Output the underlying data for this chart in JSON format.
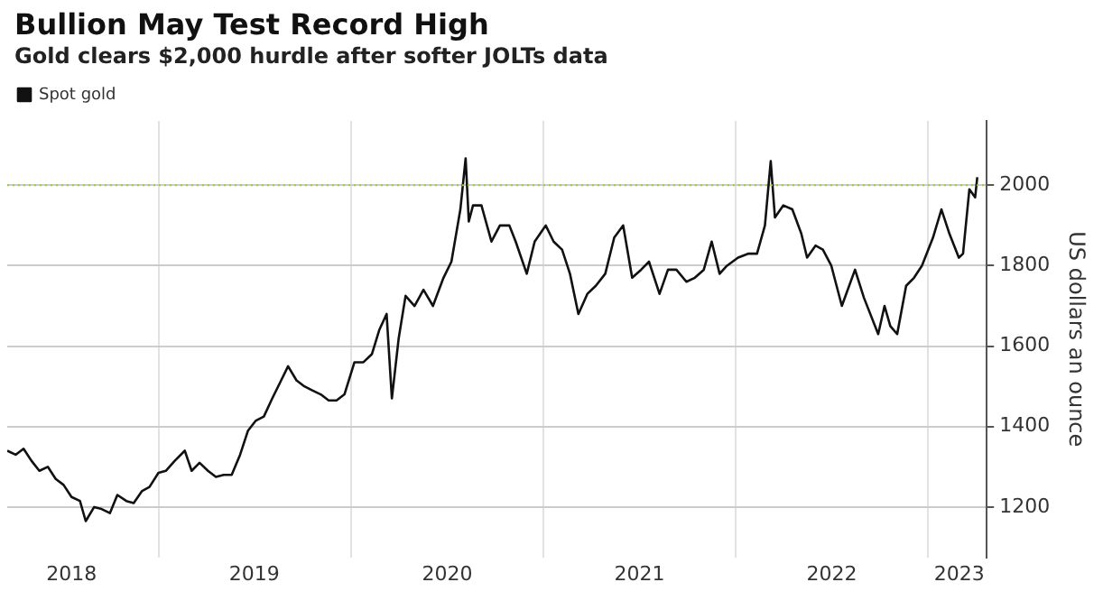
{
  "chart_data": {
    "type": "line",
    "title": "Bullion May Test Record High",
    "subtitle": "Gold clears $2,000 hurdle after softer JOLTs data",
    "ylabel": "US dollars an ounce",
    "x": [
      "2018-03-20",
      "2018-04-05",
      "2018-04-20",
      "2018-05-05",
      "2018-05-20",
      "2018-06-05",
      "2018-06-20",
      "2018-07-05",
      "2018-07-20",
      "2018-08-05",
      "2018-08-16",
      "2018-09-01",
      "2018-09-15",
      "2018-10-01",
      "2018-10-15",
      "2018-11-01",
      "2018-11-15",
      "2018-12-01",
      "2018-12-15",
      "2019-01-01",
      "2019-01-15",
      "2019-02-01",
      "2019-02-20",
      "2019-03-05",
      "2019-03-20",
      "2019-04-05",
      "2019-04-20",
      "2019-05-05",
      "2019-05-20",
      "2019-06-05",
      "2019-06-20",
      "2019-07-05",
      "2019-07-20",
      "2019-08-05",
      "2019-08-20",
      "2019-09-04",
      "2019-09-20",
      "2019-10-05",
      "2019-10-20",
      "2019-11-05",
      "2019-11-20",
      "2019-12-05",
      "2019-12-20",
      "2020-01-08",
      "2020-01-25",
      "2020-02-10",
      "2020-02-24",
      "2020-03-09",
      "2020-03-19",
      "2020-04-01",
      "2020-04-14",
      "2020-05-01",
      "2020-05-18",
      "2020-06-05",
      "2020-06-25",
      "2020-07-10",
      "2020-07-27",
      "2020-08-06",
      "2020-08-12",
      "2020-08-20",
      "2020-09-05",
      "2020-09-24",
      "2020-10-10",
      "2020-10-28",
      "2020-11-09",
      "2020-11-30",
      "2020-12-15",
      "2021-01-05",
      "2021-01-20",
      "2021-02-05",
      "2021-02-20",
      "2021-03-08",
      "2021-03-25",
      "2021-04-10",
      "2021-04-28",
      "2021-05-15",
      "2021-06-01",
      "2021-06-18",
      "2021-07-05",
      "2021-07-20",
      "2021-08-09",
      "2021-08-25",
      "2021-09-10",
      "2021-09-29",
      "2021-10-15",
      "2021-11-01",
      "2021-11-16",
      "2021-12-01",
      "2021-12-15",
      "2022-01-05",
      "2022-01-25",
      "2022-02-10",
      "2022-02-25",
      "2022-03-08",
      "2022-03-16",
      "2022-04-01",
      "2022-04-18",
      "2022-05-05",
      "2022-05-16",
      "2022-06-01",
      "2022-06-15",
      "2022-07-01",
      "2022-07-21",
      "2022-08-15",
      "2022-09-01",
      "2022-09-28",
      "2022-10-10",
      "2022-10-21",
      "2022-11-03",
      "2022-11-20",
      "2022-12-05",
      "2022-12-20",
      "2023-01-10",
      "2023-01-26",
      "2023-02-10",
      "2023-02-28",
      "2023-03-08",
      "2023-03-20",
      "2023-03-31",
      "2023-04-04"
    ],
    "series": [
      {
        "name": "Spot gold",
        "color": "#111111",
        "values": [
          1340,
          1330,
          1345,
          1315,
          1290,
          1300,
          1270,
          1255,
          1225,
          1215,
          1165,
          1200,
          1195,
          1185,
          1230,
          1215,
          1210,
          1240,
          1250,
          1285,
          1290,
          1315,
          1340,
          1290,
          1310,
          1290,
          1275,
          1280,
          1280,
          1330,
          1390,
          1415,
          1425,
          1470,
          1510,
          1550,
          1515,
          1500,
          1490,
          1480,
          1465,
          1465,
          1480,
          1560,
          1560,
          1580,
          1640,
          1680,
          1470,
          1620,
          1725,
          1700,
          1740,
          1700,
          1770,
          1810,
          1940,
          2067,
          1910,
          1950,
          1950,
          1860,
          1900,
          1900,
          1860,
          1780,
          1860,
          1900,
          1860,
          1840,
          1780,
          1680,
          1730,
          1750,
          1780,
          1870,
          1900,
          1770,
          1790,
          1810,
          1730,
          1790,
          1790,
          1760,
          1770,
          1790,
          1860,
          1780,
          1800,
          1820,
          1830,
          1830,
          1900,
          2060,
          1920,
          1950,
          1940,
          1880,
          1820,
          1850,
          1840,
          1800,
          1700,
          1790,
          1720,
          1630,
          1700,
          1650,
          1630,
          1750,
          1770,
          1800,
          1870,
          1940,
          1880,
          1820,
          1830,
          1990,
          1970,
          2020
        ]
      }
    ],
    "xlim": [
      "2018-03-20",
      "2023-04-22"
    ],
    "xticks": [
      {
        "value": "2018-07-20",
        "label": "2018"
      },
      {
        "value": "2019-01-01",
        "label": null
      },
      {
        "value": "2019-07-02",
        "label": "2019"
      },
      {
        "value": "2020-01-01",
        "label": null
      },
      {
        "value": "2020-07-02",
        "label": "2020"
      },
      {
        "value": "2021-01-01",
        "label": null
      },
      {
        "value": "2021-07-02",
        "label": "2021"
      },
      {
        "value": "2022-01-01",
        "label": null
      },
      {
        "value": "2022-07-02",
        "label": "2022"
      },
      {
        "value": "2023-01-01",
        "label": null
      },
      {
        "value": "2023-03-01",
        "label": "2023"
      }
    ],
    "ylim": [
      1075,
      2160
    ],
    "yticks": [
      1200,
      1400,
      1600,
      1800,
      2000
    ],
    "ref_lines": [
      {
        "axis": "y",
        "value": 2000,
        "color": "#9acd32",
        "line_style": "dotted"
      }
    ],
    "grid": true,
    "legend": "top left",
    "marker": "none",
    "line_style": "solid"
  }
}
